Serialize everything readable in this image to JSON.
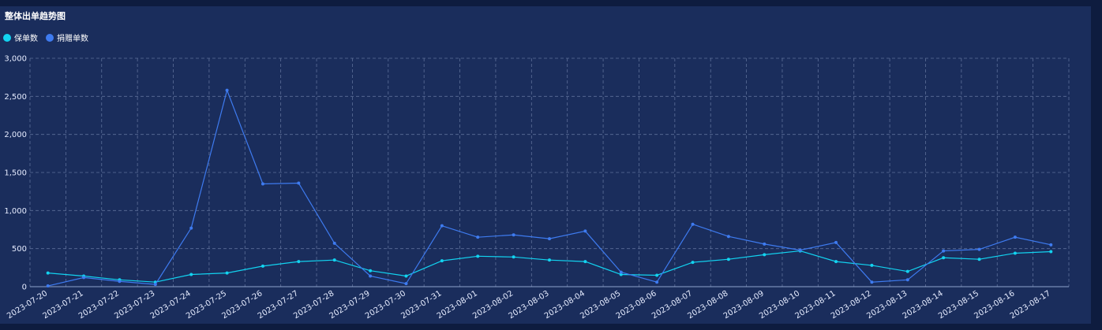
{
  "title": "整体出单趋势图",
  "legend": [
    {
      "label": "保单数",
      "color": "#12d3f0"
    },
    {
      "label": "捐赠单数",
      "color": "#3e7bf0"
    }
  ],
  "chart_data": {
    "type": "line",
    "title": "整体出单趋势图",
    "categories": [
      "2023-07-20",
      "2023-07-21",
      "2023-07-22",
      "2023-07-23",
      "2023-07-24",
      "2023-07-25",
      "2023-07-26",
      "2023-07-27",
      "2023-07-28",
      "2023-07-29",
      "2023-07-30",
      "2023-07-31",
      "2023-08-01",
      "2023-08-02",
      "2023-08-03",
      "2023-08-04",
      "2023-08-05",
      "2023-08-06",
      "2023-08-07",
      "2023-08-08",
      "2023-08-09",
      "2023-08-10",
      "2023-08-11",
      "2023-08-12",
      "2023-08-13",
      "2023-08-14",
      "2023-08-15",
      "2023-08-16",
      "2023-08-17"
    ],
    "series": [
      {
        "name": "保单数",
        "color": "#12d3f0",
        "values": [
          180,
          140,
          90,
          60,
          160,
          180,
          270,
          330,
          350,
          210,
          140,
          340,
          400,
          390,
          350,
          330,
          160,
          150,
          320,
          360,
          420,
          470,
          330,
          280,
          200,
          380,
          360,
          440,
          460
        ]
      },
      {
        "name": "捐赠单数",
        "color": "#3e7bf0",
        "values": [
          10,
          120,
          70,
          30,
          770,
          2580,
          1350,
          1360,
          570,
          140,
          40,
          800,
          650,
          680,
          630,
          730,
          190,
          60,
          820,
          660,
          560,
          480,
          580,
          60,
          90,
          470,
          490,
          650,
          550
        ]
      }
    ],
    "ylim": [
      0,
      3000
    ],
    "yticks": [
      "0",
      "500",
      "1,000",
      "1,500",
      "2,000",
      "2,500",
      "3,000"
    ],
    "grid": true,
    "legend_position": "top-left"
  }
}
